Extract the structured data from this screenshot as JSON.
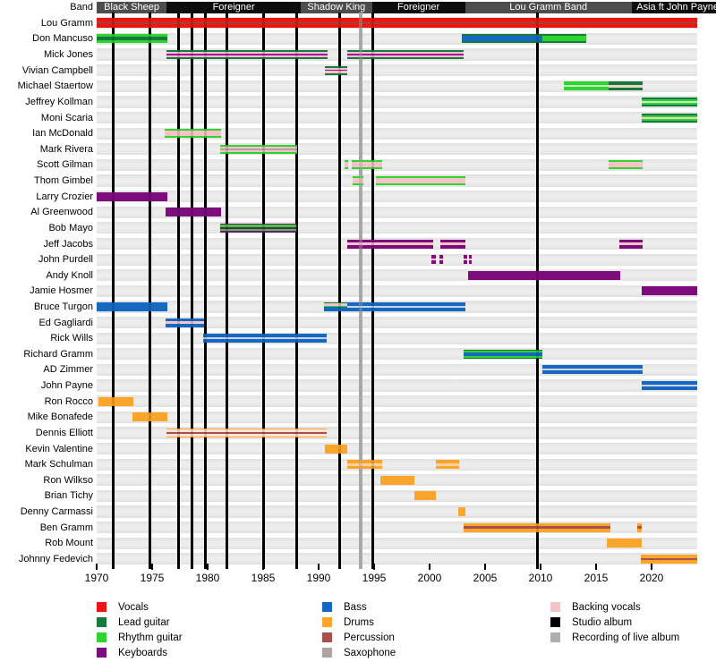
{
  "colors": {
    "red": "#ee1511",
    "red_dark": "#b5362b",
    "green": "#2fd42f",
    "dgreen": "#157a3d",
    "palegreen": "#c9efc4",
    "purple": "#7d0c7d",
    "magenta": "#a812a8",
    "pink": "#f7c3c6",
    "pink_pale": "#fae2da",
    "pink_tan": "#f0d2c0",
    "blue": "#1569c2",
    "pale_blue": "#ccd2e8",
    "orange": "#fba52a",
    "pale_orange": "#fdd1a0",
    "perc": "#ab4f4b",
    "sax": "#b2a3a3",
    "band_black": "#0d0d0d",
    "band_gray": "#4d4d4d",
    "row_bg": "#e9e9e9",
    "line_black": "#000000",
    "line_gray": "#aeaeae"
  },
  "chart_data": {
    "type": "timeline",
    "band_row_label": "Band",
    "x_axis": {
      "start": 1970,
      "end": 2024.5,
      "ticks": [
        1970,
        1975,
        1980,
        1985,
        1990,
        1995,
        2000,
        2005,
        2010,
        2015,
        2020
      ]
    },
    "bands": [
      {
        "label": "Black Sheep",
        "start": 1970,
        "end": 1976.3,
        "shade": "gray"
      },
      {
        "label": "Foreigner",
        "start": 1976.3,
        "end": 1988.4,
        "shade": "black"
      },
      {
        "label": "Shadow King",
        "start": 1988.4,
        "end": 1994.8,
        "shade": "gray"
      },
      {
        "label": "Foreigner",
        "start": 1994.8,
        "end": 2003.2,
        "shade": "black"
      },
      {
        "label": "Lou Gramm Band",
        "start": 2003.2,
        "end": 2018.2,
        "shade": "gray"
      },
      {
        "label": "Asia ft John Payne",
        "start": 2018.2,
        "end": 2026.5,
        "shade": "black"
      }
    ],
    "studio_albums": [
      1971.5,
      1974.8,
      1977.4,
      1978.6,
      1979.8,
      1981.7,
      1985.0,
      1988.0,
      1991.9,
      1994.9,
      2009.7
    ],
    "live_albums": [
      1993.8
    ],
    "members": [
      {
        "name": "Lou Gramm",
        "bars": [
          {
            "start": 1970,
            "end": 2024.1,
            "pattern": "vocals_main"
          }
        ]
      },
      {
        "name": "Don Mancuso",
        "bars": [
          {
            "start": 1970,
            "end": 1976.4,
            "pattern": "rhythm_lead"
          },
          {
            "start": 2002.9,
            "end": 2010.2,
            "pattern": "lead_bass"
          },
          {
            "start": 2010.2,
            "end": 2014.1,
            "pattern": "lead_rhythm"
          }
        ]
      },
      {
        "name": "Mick Jones",
        "bars": [
          {
            "start": 1976.3,
            "end": 1990.8,
            "pattern": "lead_keys_bv"
          },
          {
            "start": 1992.6,
            "end": 2003.1,
            "pattern": "lead_keys_bv"
          }
        ]
      },
      {
        "name": "Vivian Campbell",
        "bars": [
          {
            "start": 1990.6,
            "end": 1992.6,
            "pattern": "lead_keys_bv"
          }
        ]
      },
      {
        "name": "Michael Staertow",
        "bars": [
          {
            "start": 2012.1,
            "end": 2016.1,
            "pattern": "rhythm_pale"
          },
          {
            "start": 2016.1,
            "end": 2019.2,
            "pattern": "lead_tan"
          }
        ]
      },
      {
        "name": "Jeffrey Kollman",
        "bars": [
          {
            "start": 2019.1,
            "end": 2024.1,
            "pattern": "guitar_pale"
          }
        ]
      },
      {
        "name": "Moni Scaria",
        "bars": [
          {
            "start": 2019.1,
            "end": 2024.1,
            "pattern": "guitar_pink"
          }
        ]
      },
      {
        "name": "Ian McDonald",
        "bars": [
          {
            "start": 1976.1,
            "end": 1981.2,
            "pattern": "rhythm_bv"
          }
        ]
      },
      {
        "name": "Mark Rivera",
        "bars": [
          {
            "start": 1981.1,
            "end": 1988.1,
            "pattern": "rhythm_sax_bv"
          }
        ]
      },
      {
        "name": "Scott Gilman",
        "bars": [
          {
            "start": 1992.3,
            "end": 1992.7,
            "pattern": "rhythm_bv"
          },
          {
            "start": 1993.0,
            "end": 1995.7,
            "pattern": "rhythm_bv"
          },
          {
            "start": 2016.1,
            "end": 2019.2,
            "pattern": "rhythm_bv"
          }
        ]
      },
      {
        "name": "Thom Gimbel",
        "bars": [
          {
            "start": 1993.1,
            "end": 1994.0,
            "pattern": "rhythm_bv"
          },
          {
            "start": 1995.2,
            "end": 2003.2,
            "pattern": "rhythm_bv"
          }
        ]
      },
      {
        "name": "Larry Crozier",
        "bars": [
          {
            "start": 1970,
            "end": 1976.4,
            "pattern": "keys"
          }
        ]
      },
      {
        "name": "Al Greenwood",
        "bars": [
          {
            "start": 1976.2,
            "end": 1981.2,
            "pattern": "keys"
          }
        ]
      },
      {
        "name": "Bob Mayo",
        "bars": [
          {
            "start": 1981.1,
            "end": 1988.0,
            "pattern": "keys_rhythm"
          }
        ]
      },
      {
        "name": "Jeff Jacobs",
        "bars": [
          {
            "start": 1992.6,
            "end": 2000.3,
            "pattern": "keys_bv"
          },
          {
            "start": 2001.0,
            "end": 2003.2,
            "pattern": "keys_bv"
          },
          {
            "start": 2017.1,
            "end": 2019.2,
            "pattern": "keys_bv"
          }
        ]
      },
      {
        "name": "John Purdell",
        "bars": [
          {
            "start": 2000.2,
            "end": 2000.6,
            "pattern": "keys_bv"
          },
          {
            "start": 2000.9,
            "end": 2001.2,
            "pattern": "keys_bv"
          },
          {
            "start": 2003.1,
            "end": 2003.4,
            "pattern": "keys_bv"
          },
          {
            "start": 2003.55,
            "end": 2003.8,
            "pattern": "keys_bv"
          }
        ]
      },
      {
        "name": "Andy Knoll",
        "bars": [
          {
            "start": 2003.5,
            "end": 2017.2,
            "pattern": "keys"
          }
        ]
      },
      {
        "name": "Jamie Hosmer",
        "bars": [
          {
            "start": 2019.1,
            "end": 2024.1,
            "pattern": "keys"
          }
        ]
      },
      {
        "name": "Bruce Turgon",
        "bars": [
          {
            "start": 1970,
            "end": 1976.4,
            "pattern": "bass"
          },
          {
            "start": 1990.5,
            "end": 1992.6,
            "pattern": "bass_sk"
          },
          {
            "start": 1992.6,
            "end": 2003.2,
            "pattern": "bass_pale"
          }
        ]
      },
      {
        "name": "Ed Gagliardi",
        "bars": [
          {
            "start": 1976.2,
            "end": 1979.7,
            "pattern": "bass_bv"
          }
        ]
      },
      {
        "name": "Rick Wills",
        "bars": [
          {
            "start": 1979.6,
            "end": 1990.7,
            "pattern": "bass_pale"
          }
        ]
      },
      {
        "name": "Richard Gramm",
        "bars": [
          {
            "start": 2003.1,
            "end": 2010.2,
            "pattern": "bass_guitar"
          }
        ]
      },
      {
        "name": "AD Zimmer",
        "bars": [
          {
            "start": 2010.2,
            "end": 2019.2,
            "pattern": "bass_pale"
          }
        ]
      },
      {
        "name": "John Payne",
        "bars": [
          {
            "start": 2019.1,
            "end": 2024.1,
            "pattern": "bass_pale"
          }
        ]
      },
      {
        "name": "Ron Rocco",
        "bars": [
          {
            "start": 1970.2,
            "end": 1973.3,
            "pattern": "drums"
          }
        ]
      },
      {
        "name": "Mike Bonafede",
        "bars": [
          {
            "start": 1973.2,
            "end": 1976.4,
            "pattern": "drums"
          }
        ]
      },
      {
        "name": "Dennis Elliott",
        "bars": [
          {
            "start": 1976.3,
            "end": 1990.7,
            "pattern": "drums_perc_bv"
          }
        ]
      },
      {
        "name": "Kevin Valentine",
        "bars": [
          {
            "start": 1990.6,
            "end": 1992.6,
            "pattern": "drums"
          }
        ]
      },
      {
        "name": "Mark Schulman",
        "bars": [
          {
            "start": 1992.6,
            "end": 1995.7,
            "pattern": "drums_pale"
          },
          {
            "start": 2000.6,
            "end": 2002.7,
            "pattern": "drums_pale"
          }
        ]
      },
      {
        "name": "Ron Wilkso",
        "bars": [
          {
            "start": 1995.6,
            "end": 1998.6,
            "pattern": "drums"
          }
        ]
      },
      {
        "name": "Brian Tichy",
        "bars": [
          {
            "start": 1998.6,
            "end": 2000.6,
            "pattern": "drums"
          }
        ]
      },
      {
        "name": "Denny Carmassi",
        "bars": [
          {
            "start": 2002.6,
            "end": 2003.2,
            "pattern": "drums"
          }
        ]
      },
      {
        "name": "Ben Gramm",
        "bars": [
          {
            "start": 2003.1,
            "end": 2016.3,
            "pattern": "drums_perc"
          },
          {
            "start": 2018.7,
            "end": 2019.1,
            "pattern": "drums_perc"
          }
        ]
      },
      {
        "name": "Rob Mount",
        "bars": [
          {
            "start": 2016.0,
            "end": 2019.1,
            "pattern": "drums"
          }
        ]
      },
      {
        "name": "Johnny Fedevich",
        "bars": [
          {
            "start": 2019.0,
            "end": 2024.1,
            "pattern": "drums_perc"
          }
        ]
      }
    ],
    "patterns": {
      "vocals_main": [
        [
          "red",
          4
        ],
        [
          "red_dark",
          3
        ],
        [
          "red",
          4
        ]
      ],
      "rhythm_lead": [
        [
          "green",
          3
        ],
        [
          "dgreen",
          4
        ],
        [
          "green",
          3
        ]
      ],
      "lead_bass": [
        [
          "dgreen",
          2
        ],
        [
          "blue",
          6
        ],
        [
          "dgreen",
          2
        ]
      ],
      "lead_rhythm": [
        [
          "dgreen",
          2
        ],
        [
          "green",
          6
        ],
        [
          "dgreen",
          2
        ]
      ],
      "lead_keys_bv": [
        [
          "dgreen",
          2
        ],
        [
          "pink",
          2.5
        ],
        [
          "magenta",
          1.5
        ],
        [
          "pink",
          2.5
        ],
        [
          "dgreen",
          2
        ]
      ],
      "rhythm_pale": [
        [
          "green",
          4
        ],
        [
          "palegreen",
          2
        ],
        [
          "green",
          4
        ]
      ],
      "lead_tan": [
        [
          "dgreen",
          3
        ],
        [
          "pink_tan",
          2
        ],
        [
          "dgreen",
          3
        ]
      ],
      "guitar_pale": [
        [
          "dgreen",
          2
        ],
        [
          "green",
          2
        ],
        [
          "palegreen",
          2
        ],
        [
          "green",
          2
        ],
        [
          "dgreen",
          2
        ]
      ],
      "guitar_pink": [
        [
          "dgreen",
          2
        ],
        [
          "green",
          2
        ],
        [
          "pink_tan",
          2
        ],
        [
          "green",
          2
        ],
        [
          "dgreen",
          2
        ]
      ],
      "rhythm_bv": [
        [
          "green",
          2
        ],
        [
          "pink",
          6
        ],
        [
          "green",
          2
        ]
      ],
      "rhythm_sax_bv": [
        [
          "green",
          2
        ],
        [
          "pink",
          2
        ],
        [
          "sax",
          2
        ],
        [
          "pink",
          2
        ],
        [
          "green",
          2
        ]
      ],
      "keys": [
        [
          "purple",
          1
        ]
      ],
      "keys_rhythm": [
        [
          "purple",
          1.5
        ],
        [
          "green",
          2.5
        ],
        [
          "purple",
          2
        ],
        [
          "green",
          2.5
        ],
        [
          "purple",
          1.5
        ]
      ],
      "keys_bv": [
        [
          "purple",
          4
        ],
        [
          "pink",
          3
        ],
        [
          "purple",
          4
        ]
      ],
      "bass": [
        [
          "blue",
          1
        ]
      ],
      "bass_sk": [
        [
          "dgreen",
          1
        ],
        [
          "pink",
          3
        ],
        [
          "green",
          1
        ],
        [
          "blue",
          5
        ]
      ],
      "bass_pale": [
        [
          "blue",
          4
        ],
        [
          "pale_blue",
          2
        ],
        [
          "blue",
          4
        ]
      ],
      "bass_bv": [
        [
          "blue",
          3
        ],
        [
          "pink",
          3
        ],
        [
          "blue",
          3
        ]
      ],
      "bass_guitar": [
        [
          "dgreen",
          1
        ],
        [
          "green",
          2
        ],
        [
          "blue",
          4
        ],
        [
          "green",
          2
        ],
        [
          "dgreen",
          1
        ]
      ],
      "drums": [
        [
          "orange",
          1
        ]
      ],
      "drums_perc": [
        [
          "orange",
          3
        ],
        [
          "perc",
          2
        ],
        [
          "orange",
          3
        ]
      ],
      "drums_perc_bv": [
        [
          "orange",
          1.5
        ],
        [
          "pink_pale",
          3
        ],
        [
          "perc",
          2
        ],
        [
          "pink_pale",
          3
        ],
        [
          "orange",
          1.5
        ]
      ],
      "drums_pale": [
        [
          "orange",
          3
        ],
        [
          "pale_orange",
          3
        ],
        [
          "orange",
          3
        ]
      ]
    },
    "legend": [
      {
        "items": [
          {
            "label": "Vocals",
            "color": "red"
          },
          {
            "label": "Lead guitar",
            "color": "dgreen"
          },
          {
            "label": "Rhythm guitar",
            "color": "green"
          },
          {
            "label": "Keyboards",
            "color": "purple"
          }
        ]
      },
      {
        "items": [
          {
            "label": "Bass",
            "color": "blue"
          },
          {
            "label": "Drums",
            "color": "orange"
          },
          {
            "label": "Percussion",
            "color": "perc"
          },
          {
            "label": "Saxophone",
            "color": "sax"
          }
        ]
      },
      {
        "items": [
          {
            "label": "Backing vocals",
            "color": "pink"
          },
          {
            "label": "Studio album",
            "color": "line_black"
          },
          {
            "label": "Recording of live album",
            "color": "line_gray"
          }
        ]
      }
    ]
  }
}
